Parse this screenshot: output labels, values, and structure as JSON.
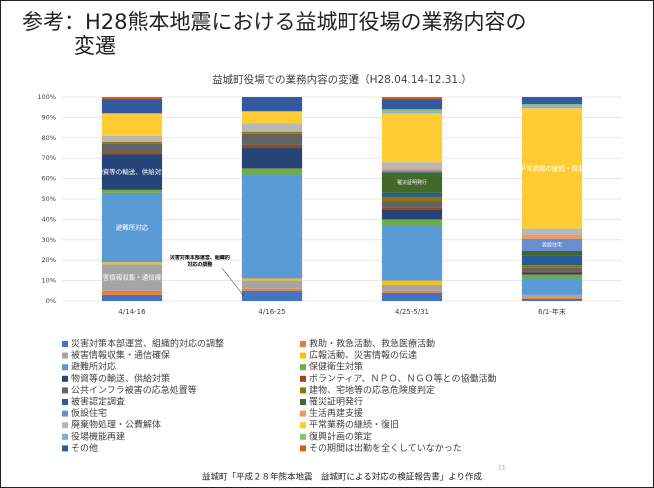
{
  "slide_title_lines": [
    "参考：H28熊本地震における益城町役場の業務内容の",
    "変遷"
  ],
  "footer": "益城町「平成２８年熊本地震　益城町による対応の検証報告書」より作成",
  "page_number": "11",
  "chart_data": {
    "type": "stacked_bar",
    "title": "益城町役場での業務内容の変遷（H28.04.14-12.31.）",
    "categories": [
      "4/14-16",
      "4/16-25",
      "4/25-5/31",
      "6/1-年末"
    ],
    "ylim": [
      0,
      100
    ],
    "yticks": [
      {
        "value": 0,
        "label": "0%"
      },
      {
        "value": 10,
        "label": "10%"
      },
      {
        "value": 20,
        "label": "20%"
      },
      {
        "value": 30,
        "label": "30%"
      },
      {
        "value": 40,
        "label": "40%"
      },
      {
        "value": 50,
        "label": "50%"
      },
      {
        "value": 60,
        "label": "60%"
      },
      {
        "value": 70,
        "label": "70%"
      },
      {
        "value": 80,
        "label": "80%"
      },
      {
        "value": 90,
        "label": "90%"
      },
      {
        "value": 100,
        "label": "100%"
      }
    ],
    "series": [
      {
        "name": "災害対策本部運営、組織的対応の調整",
        "color": "#4472c4",
        "values": [
          3,
          5,
          4,
          1
        ]
      },
      {
        "name": "救助・救急活動、救急医療活動",
        "color": "#ed7d31",
        "values": [
          2,
          1,
          1,
          0.5
        ]
      },
      {
        "name": "被害情報収集・通信確保",
        "color": "#a5a5a5",
        "values": [
          13,
          4,
          3,
          1.5
        ]
      },
      {
        "name": "広報活動、災害情報の伝達",
        "color": "#ffc000",
        "values": [
          1,
          1,
          2,
          0
        ]
      },
      {
        "name": "避難所対応",
        "color": "#5b9bd5",
        "values": [
          34,
          51,
          27,
          8
        ]
      },
      {
        "name": "保健衛生対策",
        "color": "#70ad47",
        "values": [
          1.5,
          3,
          3,
          2
        ]
      },
      {
        "name": "物資等の輸送、供給対策",
        "color": "#264478",
        "values": [
          17.5,
          10,
          5,
          1
        ]
      },
      {
        "name": "ボランティア、ＮＰＯ、ＮＧＯ等との協働活動",
        "color": "#9e480e",
        "values": [
          1,
          1.5,
          1,
          0.5
        ]
      },
      {
        "name": "公共インフラ被害の応急処置等",
        "color": "#636363",
        "values": [
          4,
          5.5,
          3,
          2
        ]
      },
      {
        "name": "建物、宅地等の応急危険度判定",
        "color": "#997300",
        "values": [
          1,
          1,
          2,
          1
        ]
      },
      {
        "name": "被害認定調査",
        "color": "#255e91",
        "values": [
          0,
          0,
          2,
          5
        ]
      },
      {
        "name": "罹災証明発行",
        "color": "#43682b",
        "values": [
          0,
          0,
          10,
          2
        ]
      },
      {
        "name": "仮設住宅",
        "color": "#698ed0",
        "values": [
          0,
          0,
          1,
          6
        ]
      },
      {
        "name": "生活再建支援",
        "color": "#f1975a",
        "values": [
          0,
          0,
          1,
          2
        ]
      },
      {
        "name": "廃棄物処理・公費解体",
        "color": "#b7b7b7",
        "values": [
          3,
          4,
          3,
          3
        ]
      },
      {
        "name": "平常業務の継続・復旧",
        "color": "#ffcd33",
        "values": [
          11,
          6,
          24,
          59
        ]
      },
      {
        "name": "役場機能再建",
        "color": "#7cafdd",
        "values": [
          0,
          0,
          1,
          1
        ]
      },
      {
        "name": "復興計画の策定",
        "color": "#8cc168",
        "values": [
          0,
          0,
          1,
          1
        ]
      },
      {
        "name": "その他",
        "color": "#335aa1",
        "values": [
          7,
          7,
          5,
          3.5
        ]
      },
      {
        "name": "その期間は出勤を全くしていなかった",
        "color": "#d26012",
        "values": [
          1,
          0,
          1,
          0
        ]
      }
    ],
    "segment_labels": [
      {
        "series": 2,
        "category": 0,
        "name": "被害情報収集・通信確保"
      },
      {
        "series": 4,
        "category": 0,
        "name": "避難所対応"
      },
      {
        "series": 6,
        "category": 0,
        "name": "物資等の輸送、供給対策"
      },
      {
        "series": 11,
        "category": 2,
        "name": "罹災証明発行"
      },
      {
        "series": 12,
        "category": 3,
        "name": "仮設住宅"
      },
      {
        "series": 15,
        "category": 3,
        "name": "平常業務の継続・復旧"
      }
    ],
    "annotation": "災害対策本部運営、組織的対応の調整"
  }
}
